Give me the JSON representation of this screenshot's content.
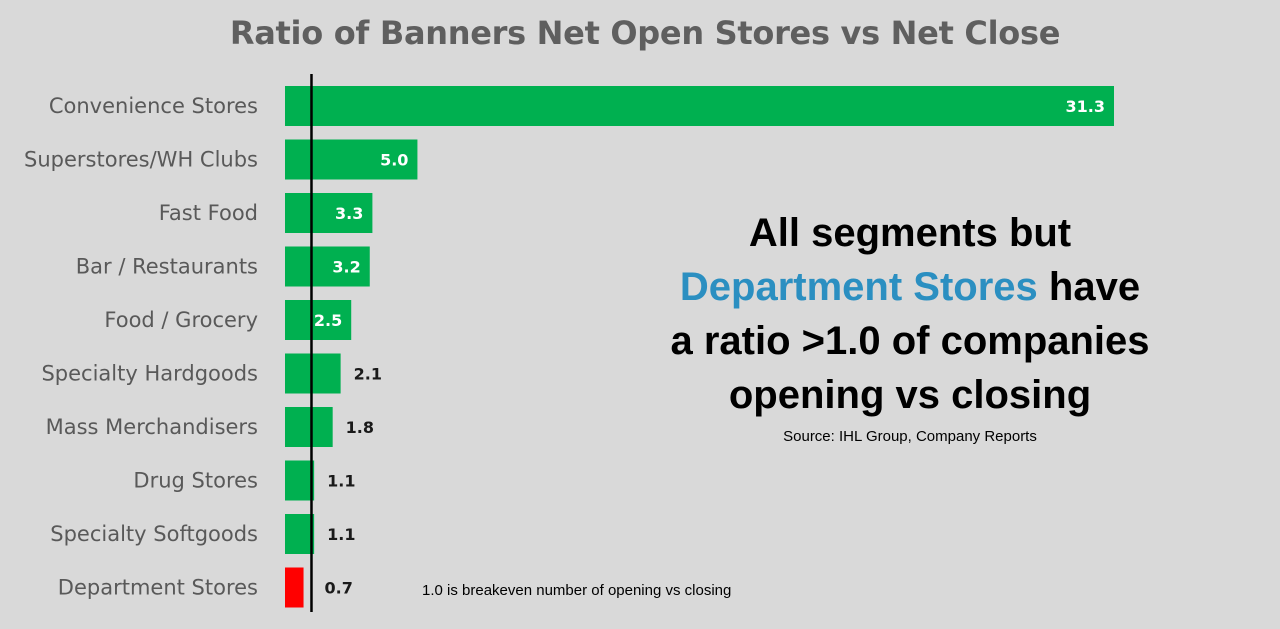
{
  "chart_data": {
    "type": "bar",
    "orientation": "horizontal",
    "title": "Ratio of Banners Net Open Stores vs Net Close",
    "categories": [
      "Convenience Stores",
      "Superstores/WH Clubs",
      "Fast Food",
      "Bar / Restaurants",
      "Food / Grocery",
      "Specialty Hardgoods",
      "Mass Merchandisers",
      "Drug Stores",
      "Specialty Softgoods",
      "Department Stores"
    ],
    "values": [
      31.3,
      5.0,
      3.3,
      3.2,
      2.5,
      2.1,
      1.8,
      1.1,
      1.1,
      0.7
    ],
    "value_labels": [
      "31.3",
      "5.0",
      "3.3",
      "3.2",
      "2.5",
      "2.1",
      "1.8",
      "1.1",
      "1.1",
      "0.7"
    ],
    "reference_line": 1.0,
    "xlim": [
      0,
      33
    ],
    "grid": false,
    "legend": "none",
    "colors": {
      "positive": "#00b050",
      "negative": "#ff0000",
      "reference_line": "#000000"
    }
  },
  "callout": {
    "line1": "All segments but",
    "highlight": "Department Stores",
    "line2_rest": " have",
    "line3": "a ratio >1.0 of companies",
    "line4": "opening vs closing",
    "highlight_color": "#2b8fc1"
  },
  "source_note": "Source: IHL Group, Company Reports",
  "breakeven_note": "1.0 is breakeven number of opening vs closing"
}
